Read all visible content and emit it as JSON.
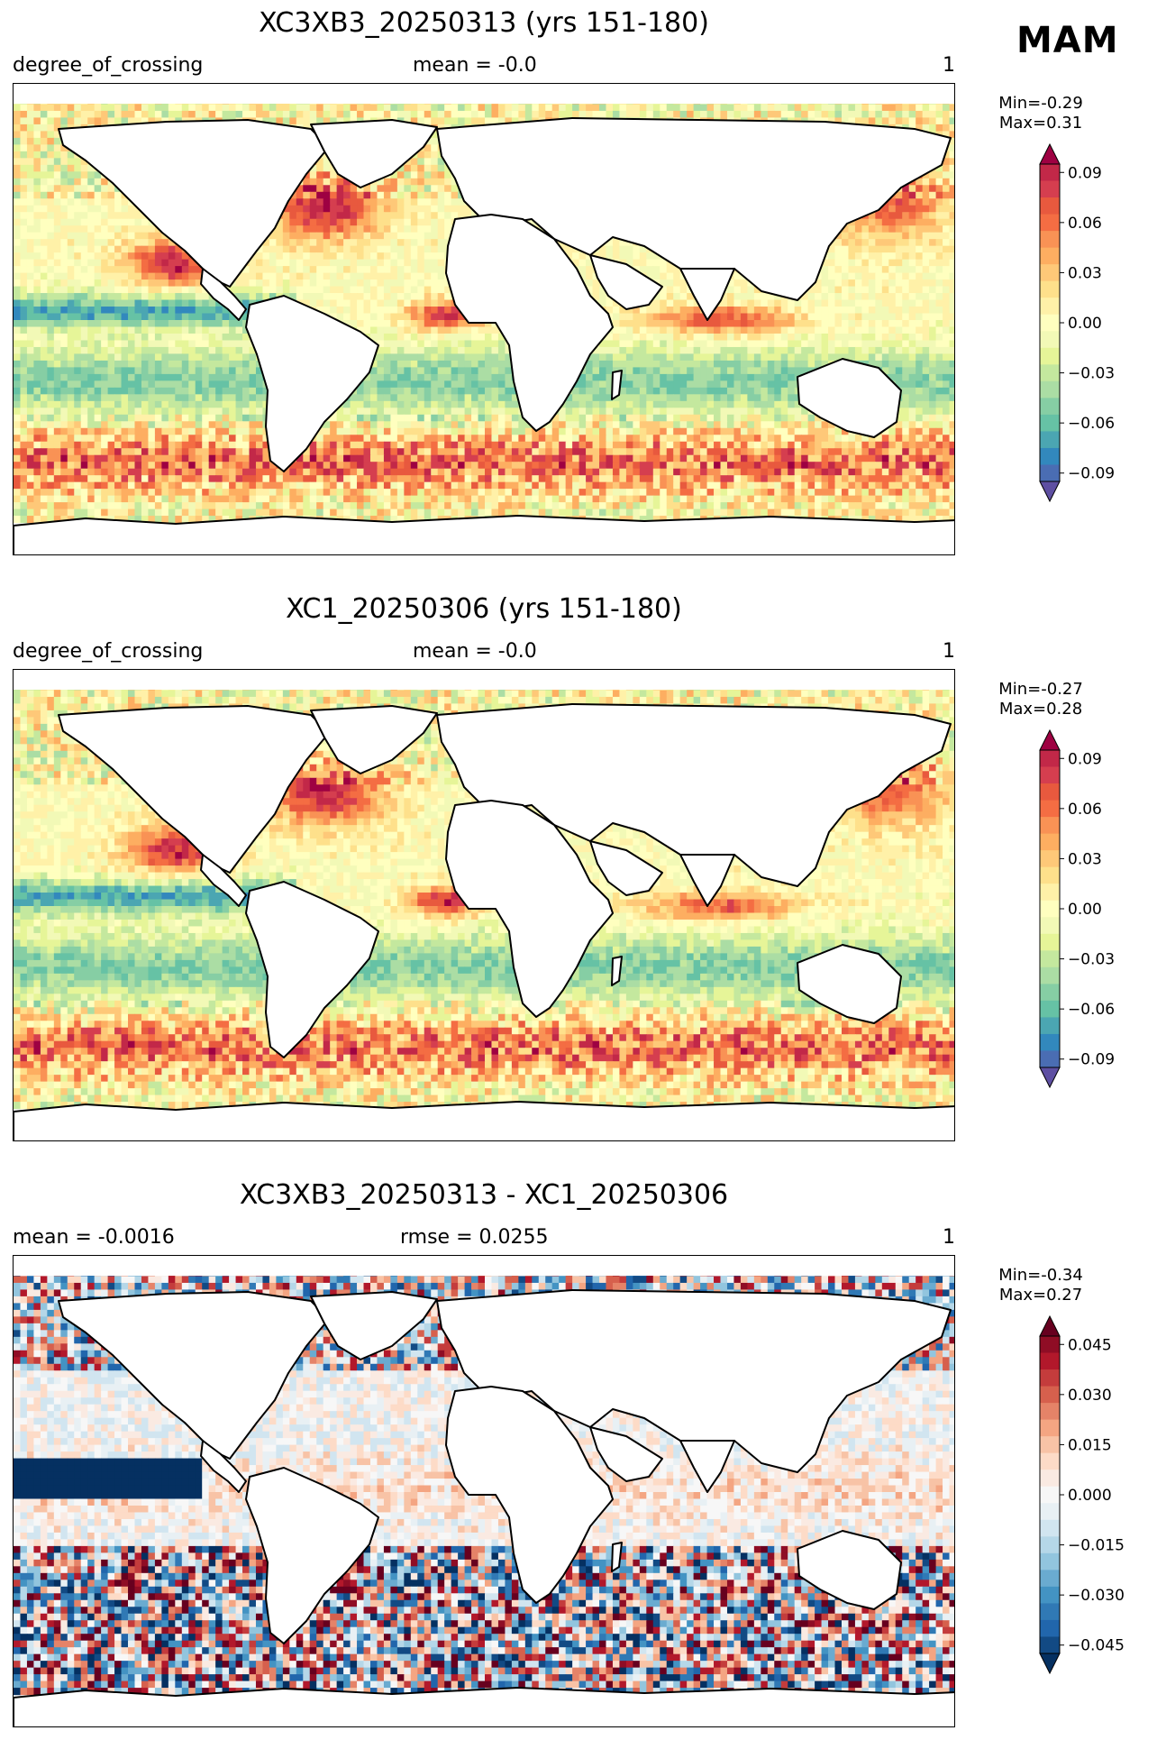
{
  "season": "MAM",
  "panels": [
    {
      "title": "XC3XB3_20250313 (yrs 151-180)",
      "left": "degree_of_crossing",
      "center": "mean = -0.0",
      "right": "1",
      "minmax": "Min=-0.29\nMax=0.31",
      "colormap": "Spectral_r",
      "colorbar": {
        "ticks": [
          "0.09",
          "0.06",
          "0.03",
          "0.00",
          "−0.03",
          "−0.06",
          "−0.09"
        ],
        "colors": [
          "#9e0142",
          "#c22848",
          "#d53e4f",
          "#e8593e",
          "#f46d43",
          "#f99255",
          "#fdae61",
          "#fec878",
          "#fee08b",
          "#fff1a8",
          "#ffffbf",
          "#f2f9b6",
          "#e6f598",
          "#c4e89e",
          "#abdda4",
          "#86cea4",
          "#66c2a5",
          "#4ba6b2",
          "#3288bd",
          "#4a6db3",
          "#5e4fa2"
        ]
      }
    },
    {
      "title": "XC1_20250306 (yrs 151-180)",
      "left": "degree_of_crossing",
      "center": "mean = -0.0",
      "right": "1",
      "minmax": "Min=-0.27\nMax=0.28",
      "colormap": "Spectral_r",
      "colorbar": {
        "ticks": [
          "0.09",
          "0.06",
          "0.03",
          "0.00",
          "−0.03",
          "−0.06",
          "−0.09"
        ],
        "colors": [
          "#9e0142",
          "#c22848",
          "#d53e4f",
          "#e8593e",
          "#f46d43",
          "#f99255",
          "#fdae61",
          "#fec878",
          "#fee08b",
          "#fff1a8",
          "#ffffbf",
          "#f2f9b6",
          "#e6f598",
          "#c4e89e",
          "#abdda4",
          "#86cea4",
          "#66c2a5",
          "#4ba6b2",
          "#3288bd",
          "#4a6db3",
          "#5e4fa2"
        ]
      }
    },
    {
      "title": "XC3XB3_20250313 - XC1_20250306",
      "left": "mean = -0.0016",
      "center": "rmse = 0.0255",
      "right": "1",
      "minmax": "Min=-0.34\nMax=0.27",
      "colormap": "RdBu_r",
      "colorbar": {
        "ticks": [
          "0.045",
          "0.030",
          "0.015",
          "0.000",
          "−0.015",
          "−0.030",
          "−0.045"
        ],
        "colors": [
          "#67001f",
          "#8f0d25",
          "#b2182b",
          "#c43c3c",
          "#d6604d",
          "#e58368",
          "#f4a582",
          "#f8c3a6",
          "#fddbc7",
          "#faeae2",
          "#f7f7f7",
          "#e8f0f4",
          "#d1e5f0",
          "#b5d7e8",
          "#92c5de",
          "#6aabd0",
          "#4393c3",
          "#3079b5",
          "#2166ac",
          "#124a84",
          "#053061"
        ]
      }
    }
  ]
}
